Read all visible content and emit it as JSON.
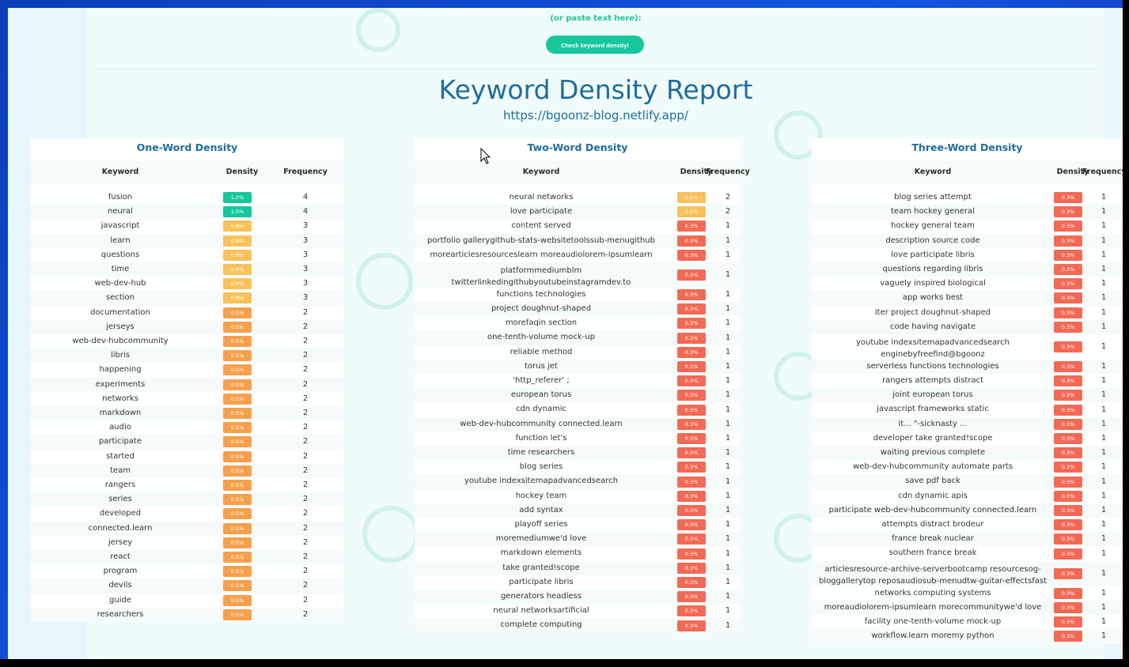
{
  "header": {
    "paste_hint": "(or paste text here):",
    "check_button": "Check keyword density!"
  },
  "report": {
    "title": "Keyword Density Report",
    "url": "https://bgoonz-blog.netlify.app/"
  },
  "colors": {
    "green": "#16c79b",
    "yellow": "#f8c15a",
    "orange": "#f7a04c",
    "red": "#f26a55",
    "title": "#1e6d9c"
  },
  "tables": [
    {
      "title": "One-Word Density",
      "headers": [
        "Keyword",
        "Density",
        "Frequency"
      ],
      "rows": [
        [
          "fusion",
          "1.0%",
          "4",
          "green"
        ],
        [
          "neural",
          "1.0%",
          "4",
          "green"
        ],
        [
          "javascript",
          "0.8%",
          "3",
          "yellow"
        ],
        [
          "learn",
          "0.8%",
          "3",
          "yellow"
        ],
        [
          "questions",
          "0.8%",
          "3",
          "yellow"
        ],
        [
          "time",
          "0.8%",
          "3",
          "yellow"
        ],
        [
          "web-dev-hub",
          "0.8%",
          "3",
          "yellow"
        ],
        [
          "section",
          "0.8%",
          "3",
          "yellow"
        ],
        [
          "documentation",
          "0.5%",
          "2",
          "orange"
        ],
        [
          "jerseys",
          "0.5%",
          "2",
          "orange"
        ],
        [
          "web-dev-hubcommunity",
          "0.5%",
          "2",
          "orange"
        ],
        [
          "libris",
          "0.5%",
          "2",
          "orange"
        ],
        [
          "happening",
          "0.5%",
          "2",
          "orange"
        ],
        [
          "experiments",
          "0.5%",
          "2",
          "orange"
        ],
        [
          "networks",
          "0.5%",
          "2",
          "orange"
        ],
        [
          "markdown",
          "0.5%",
          "2",
          "orange"
        ],
        [
          "audio",
          "0.5%",
          "2",
          "orange"
        ],
        [
          "participate",
          "0.5%",
          "2",
          "orange"
        ],
        [
          "started",
          "0.5%",
          "2",
          "orange"
        ],
        [
          "team",
          "0.5%",
          "2",
          "orange"
        ],
        [
          "rangers",
          "0.5%",
          "2",
          "orange"
        ],
        [
          "series",
          "0.5%",
          "2",
          "orange"
        ],
        [
          "developed",
          "0.5%",
          "2",
          "orange"
        ],
        [
          "connected.learn",
          "0.5%",
          "2",
          "orange"
        ],
        [
          "jersey",
          "0.5%",
          "2",
          "orange"
        ],
        [
          "react",
          "0.5%",
          "2",
          "orange"
        ],
        [
          "program",
          "0.5%",
          "2",
          "orange"
        ],
        [
          "devils",
          "0.5%",
          "2",
          "orange"
        ],
        [
          "guide",
          "0.5%",
          "2",
          "orange"
        ],
        [
          "researchers",
          "0.5%",
          "2",
          "orange"
        ]
      ]
    },
    {
      "title": "Two-Word Density",
      "headers": [
        "Keyword",
        "Density",
        "Frequency"
      ],
      "rows": [
        [
          "neural networks",
          "0.5%",
          "2",
          "yellow"
        ],
        [
          "love participate",
          "0.5%",
          "2",
          "yellow"
        ],
        [
          "content served",
          "0.3%",
          "1",
          "red"
        ],
        [
          "portfolio gallerygithub-stats-websitetoolssub-menugithub",
          "0.3%",
          "1",
          "red"
        ],
        [
          "morearticlesresourceslearn moreaudiolorem-ipsumlearn",
          "0.3%",
          "1",
          "red"
        ],
        [
          "platformmediumblm twitterlinkedingithubyoutubeinstagramdev.to",
          "0.3%",
          "1",
          "red"
        ],
        [
          "functions technologies",
          "0.3%",
          "1",
          "red"
        ],
        [
          "project doughnut-shaped",
          "0.3%",
          "1",
          "red"
        ],
        [
          "morefaqin section",
          "0.3%",
          "1",
          "red"
        ],
        [
          "one-tenth-volume mock-up",
          "0.3%",
          "1",
          "red"
        ],
        [
          "reliable method",
          "0.3%",
          "1",
          "red"
        ],
        [
          "torus jet",
          "0.3%",
          "1",
          "red"
        ],
        [
          "'http_referer' ;",
          "0.3%",
          "1",
          "red"
        ],
        [
          "european torus",
          "0.3%",
          "1",
          "red"
        ],
        [
          "cdn dynamic",
          "0.3%",
          "1",
          "red"
        ],
        [
          "web-dev-hubcommunity connected.learn",
          "0.3%",
          "1",
          "red"
        ],
        [
          "function let's",
          "0.3%",
          "1",
          "red"
        ],
        [
          "time researchers",
          "0.3%",
          "1",
          "red"
        ],
        [
          "blog series",
          "0.3%",
          "1",
          "red"
        ],
        [
          "youtube indexsitemapadvancedsearch",
          "0.3%",
          "1",
          "red"
        ],
        [
          "hockey team",
          "0.3%",
          "1",
          "red"
        ],
        [
          "add syntax",
          "0.3%",
          "1",
          "red"
        ],
        [
          "playoff series",
          "0.3%",
          "1",
          "red"
        ],
        [
          "moremediumwe'd love",
          "0.3%",
          "1",
          "red"
        ],
        [
          "markdown elements",
          "0.3%",
          "1",
          "red"
        ],
        [
          "take granted!scope",
          "0.3%",
          "1",
          "red"
        ],
        [
          "participate libris",
          "0.3%",
          "1",
          "red"
        ],
        [
          "generators headless",
          "0.3%",
          "1",
          "red"
        ],
        [
          "neural networksartificial",
          "0.3%",
          "1",
          "red"
        ],
        [
          "complete computing",
          "0.3%",
          "1",
          "red"
        ]
      ]
    },
    {
      "title": "Three-Word Density",
      "headers": [
        "Keyword",
        "Density",
        "Frequency"
      ],
      "rows": [
        [
          "blog series attempt",
          "0.3%",
          "1",
          "red"
        ],
        [
          "team hockey general",
          "0.3%",
          "1",
          "red"
        ],
        [
          "hockey general team",
          "0.3%",
          "1",
          "red"
        ],
        [
          "description source code",
          "0.3%",
          "1",
          "red"
        ],
        [
          "love participate libris",
          "0.3%",
          "1",
          "red"
        ],
        [
          "questions regarding libris",
          "0.3%",
          "1",
          "red"
        ],
        [
          "vaguely inspired biological",
          "0.3%",
          "1",
          "red"
        ],
        [
          "app works best",
          "0.3%",
          "1",
          "red"
        ],
        [
          "iter project doughnut-shaped",
          "0.3%",
          "1",
          "red"
        ],
        [
          "code having navigate",
          "0.3%",
          "1",
          "red"
        ],
        [
          "youtube indexsitemapadvancedsearch enginebyfreefind@bgoonz",
          "0.3%",
          "1",
          "red"
        ],
        [
          "serverless functions technologies",
          "0.3%",
          "1",
          "red"
        ],
        [
          "rangers attempts distract",
          "0.3%",
          "1",
          "red"
        ],
        [
          "joint european torus",
          "0.3%",
          "1",
          "red"
        ],
        [
          "javascript frameworks static",
          "0.3%",
          "1",
          "red"
        ],
        [
          "it... \"-sicknasty ...",
          "0.3%",
          "1",
          "red"
        ],
        [
          "developer take granted!scope",
          "0.3%",
          "1",
          "red"
        ],
        [
          "waiting previous complete",
          "0.3%",
          "1",
          "red"
        ],
        [
          "web-dev-hubcommunity automate parts",
          "0.3%",
          "1",
          "red"
        ],
        [
          "save pdf back",
          "0.3%",
          "1",
          "red"
        ],
        [
          "cdn dynamic apis",
          "0.3%",
          "1",
          "red"
        ],
        [
          "participate web-dev-hubcommunity connected.learn",
          "0.3%",
          "1",
          "red"
        ],
        [
          "attempts distract brodeur",
          "0.3%",
          "1",
          "red"
        ],
        [
          "france break nuclear",
          "0.3%",
          "1",
          "red"
        ],
        [
          "southern france break",
          "0.3%",
          "1",
          "red"
        ],
        [
          "articlesresource-archive-serverbootcamp resourcesog-bloggallerytop reposaudiosub-menudtw-guitar-effectsfast",
          "0.3%",
          "1",
          "red"
        ],
        [
          "networks computing systems",
          "0.3%",
          "1",
          "red"
        ],
        [
          "moreaudiolorem-ipsumlearn morecommunitywe'd love",
          "0.3%",
          "1",
          "red"
        ],
        [
          "facility one-tenth-volume mock-up",
          "0.3%",
          "1",
          "red"
        ],
        [
          "workflow.learn moremy python",
          "0.3%",
          "1",
          "red"
        ]
      ]
    }
  ]
}
